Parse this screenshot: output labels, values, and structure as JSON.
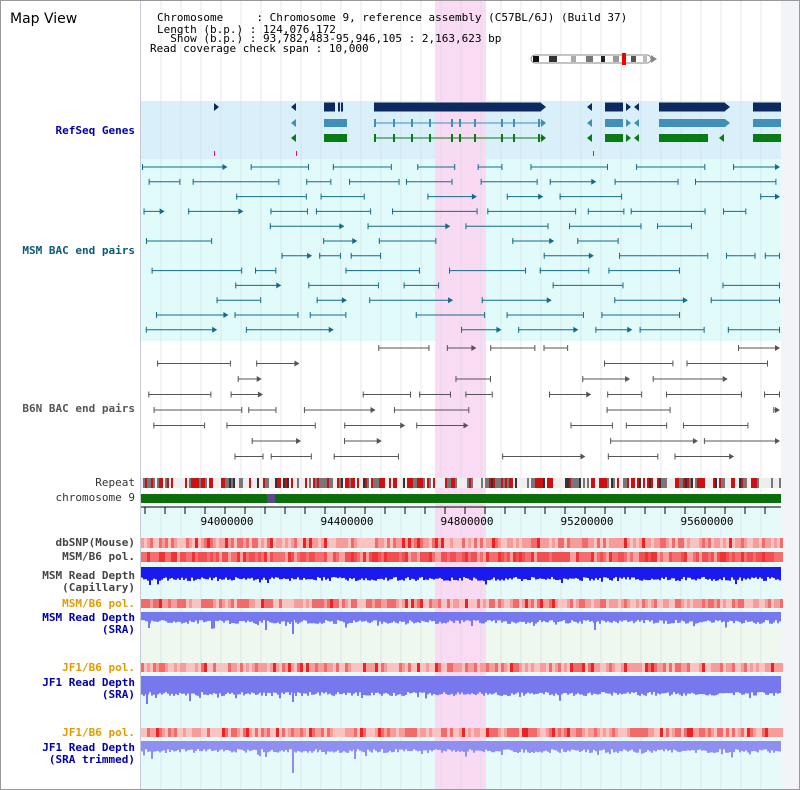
{
  "title": "Map View",
  "header": {
    "rows": [
      {
        "key": "Chromosome    ",
        "value": "Chromosome 9, reference assembly (C57BL/6J) (Build 37)"
      },
      {
        "key": "Length (b.p.)",
        "value": "124,076,172"
      },
      {
        "key": "  Show (b.p.)",
        "value": "93,782,483-95,946,105 : 2,163,623 bp"
      },
      {
        "key": "Read coverage check span",
        "value": "10,000"
      }
    ]
  },
  "tracks": {
    "refseq": "RefSeq Genes",
    "msm_bac": "MSM BAC end pairs",
    "b6n_bac": "B6N BAC end pairs",
    "repeat": "Repeat",
    "chromosome": "chromosome 9",
    "dbsnp": "dbSNP(Mouse)",
    "msm_b6_pol": "MSM/B6 pol.",
    "msm_depth_cap_1": "MSM Read Depth",
    "msm_depth_cap_2": "(Capillary)",
    "msm_b6_pol_2": "MSM/B6 pol.",
    "msm_depth_sra_1": "MSM Read Depth",
    "msm_depth_sra_2": "(SRA)",
    "jf1_b6_pol": "JF1/B6 pol.",
    "jf1_depth_sra_1": "JF1 Read Depth",
    "jf1_depth_sra_2": "(SRA)",
    "jf1_b6_pol_2": "JF1/B6 pol.",
    "jf1_depth_trim_1": "JF1 Read Depth",
    "jf1_depth_trim_2": "(SRA trimmed)"
  },
  "axis": {
    "ticks": [
      "94000000",
      "94400000",
      "94800000",
      "95200000",
      "95600000"
    ],
    "start": 93782483,
    "end": 95946105
  },
  "colors": {
    "highlight": "#f9d9f2",
    "refseq_bg": "#d9f0fa",
    "msm_bg": "#e1fbfb",
    "gene_navy": "#0d2a5e",
    "gene_teal": "#3f8fb8",
    "gene_green": "#0a7a14",
    "bac_teal": "#126b87",
    "bac_gray": "#555555",
    "chrom_green": "#0a6e0a",
    "depth_blue": "#1a1aee",
    "depth_violet": "#7777ee",
    "pol_red": "#ee4444"
  }
}
